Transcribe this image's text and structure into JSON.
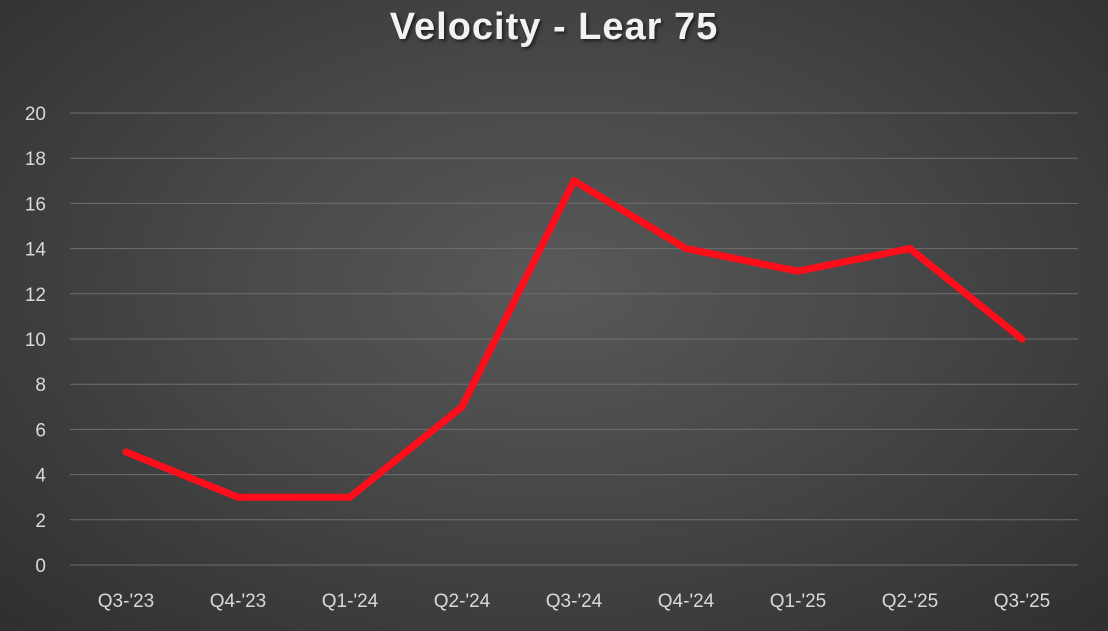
{
  "chart_data": {
    "type": "line",
    "title": "Velocity - Lear 75",
    "xlabel": "",
    "ylabel": "",
    "categories": [
      "Q3-'23",
      "Q4-'23",
      "Q1-'24",
      "Q2-'24",
      "Q3-'24",
      "Q4-'24",
      "Q1-'25",
      "Q2-'25",
      "Q3-'25"
    ],
    "series": [
      {
        "values": [
          5,
          3,
          3,
          7,
          17,
          14,
          13,
          14,
          10
        ],
        "color": "#ff0d1a"
      }
    ],
    "ylim": [
      0,
      20
    ],
    "yticks": [
      "0",
      "2",
      "4",
      "6",
      "8",
      "10",
      "12",
      "14",
      "16",
      "18",
      "20"
    ],
    "grid": true,
    "legend": "none"
  },
  "colors": {
    "background": "#474747",
    "gridline": "#6e6e6e",
    "line": "#ff0d1a",
    "text": "#d9d9d9",
    "title": "#f2f2f2"
  }
}
